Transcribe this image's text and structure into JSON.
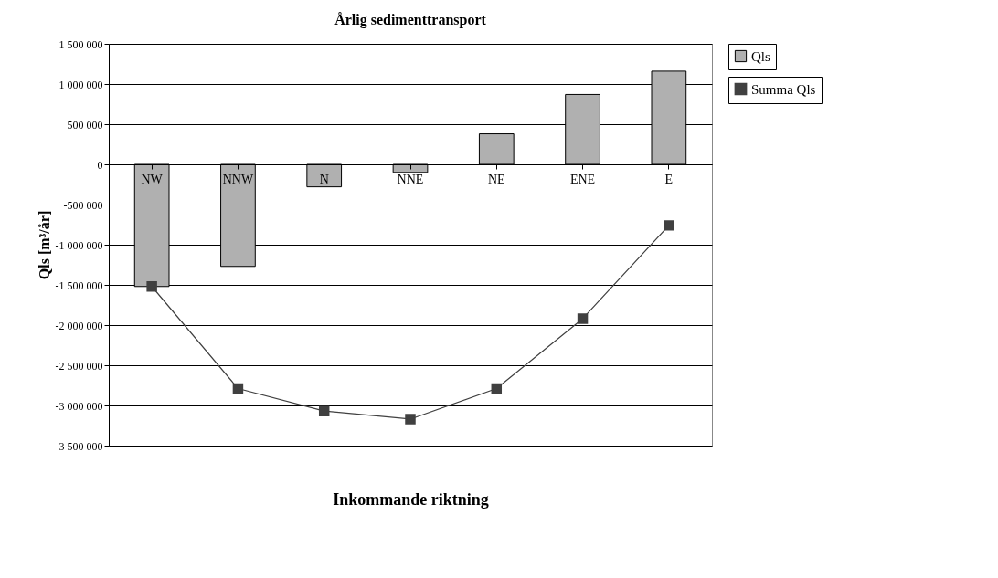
{
  "chart_data": {
    "type": "bar",
    "title": "Årlig sedimenttransport",
    "xlabel": "Inkommande riktning",
    "ylabel": "Qls [m³/år]",
    "categories": [
      "NW",
      "NNW",
      "N",
      "NNE",
      "NE",
      "ENE",
      "E"
    ],
    "series": [
      {
        "name": "Qls",
        "color": "#b0b0b0",
        "values": [
          -1520000,
          -1270000,
          -280000,
          -100000,
          380000,
          870000,
          1160000
        ]
      },
      {
        "name": "Summa Qls",
        "type": "line",
        "color": "#404040",
        "values": [
          -1520000,
          -2790000,
          -3070000,
          -3170000,
          -2790000,
          -1920000,
          -760000
        ]
      }
    ],
    "ylim": [
      -3500000,
      1500000
    ],
    "yticks": [
      {
        "value": -3500000,
        "label": "-3 500 000"
      },
      {
        "value": -3000000,
        "label": "-3 000 000"
      },
      {
        "value": -2500000,
        "label": "-2 500 000"
      },
      {
        "value": -2000000,
        "label": "-2 000 000"
      },
      {
        "value": -1500000,
        "label": "-1 500 000"
      },
      {
        "value": -1000000,
        "label": "-1 000 000"
      },
      {
        "value": -500000,
        "label": "-500 000"
      },
      {
        "value": 0,
        "label": "0"
      },
      {
        "value": 500000,
        "label": "500 000"
      },
      {
        "value": 1000000,
        "label": "1 000 000"
      },
      {
        "value": 1500000,
        "label": "1 500 000"
      }
    ],
    "grid": "y",
    "legend": "right",
    "marker": "square",
    "line_style": "solid"
  }
}
